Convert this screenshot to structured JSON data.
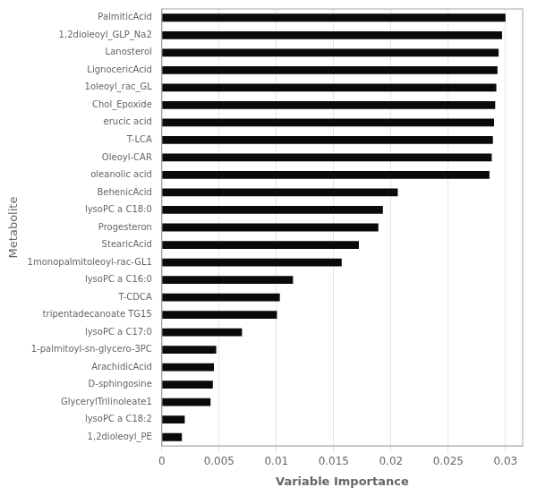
{
  "chart_data": {
    "type": "bar",
    "orientation": "horizontal",
    "xlabel": "Variable Importance",
    "ylabel": "Metabolite",
    "categories": [
      "1,2dioleoyl_PE",
      "lysoPC a C18:2",
      "GlycerylTrilinoleate1",
      "D-sphingosine",
      "ArachidicAcid",
      "1-palmitoyl-sn-glycero-3PC",
      "lysoPC a C17:0",
      "tripentadecanoate TG15",
      "T-CDCA",
      "lysoPC a C16:0",
      "1monopalmitoleoyl-rac-GL1",
      "StearicAcid",
      "Progesteron",
      "lysoPC a C18:0",
      "BehenicAcid",
      "oleanolic acid",
      "Oleoyl-CAR",
      "T-LCA",
      "erucic acid",
      "Chol_Epoxide",
      "1oleoyl_rac_GL",
      "LignocericAcid",
      "Lanosterol",
      "1,2dioleoyl_GLP_Na2",
      "PalmiticAcid"
    ],
    "values": [
      0.00175,
      0.002,
      0.00425,
      0.00445,
      0.00455,
      0.00475,
      0.007,
      0.01005,
      0.0103,
      0.01145,
      0.0157,
      0.0172,
      0.0189,
      0.0193,
      0.0206,
      0.0286,
      0.0288,
      0.0289,
      0.029,
      0.0291,
      0.0292,
      0.0293,
      0.0294,
      0.0297,
      0.03
    ],
    "color": "#0a0a0a",
    "xlim": [
      0,
      0.0315
    ],
    "xticks": [
      0,
      0.005,
      0.01,
      0.015,
      0.02,
      0.025,
      0.03
    ],
    "grid": true
  }
}
